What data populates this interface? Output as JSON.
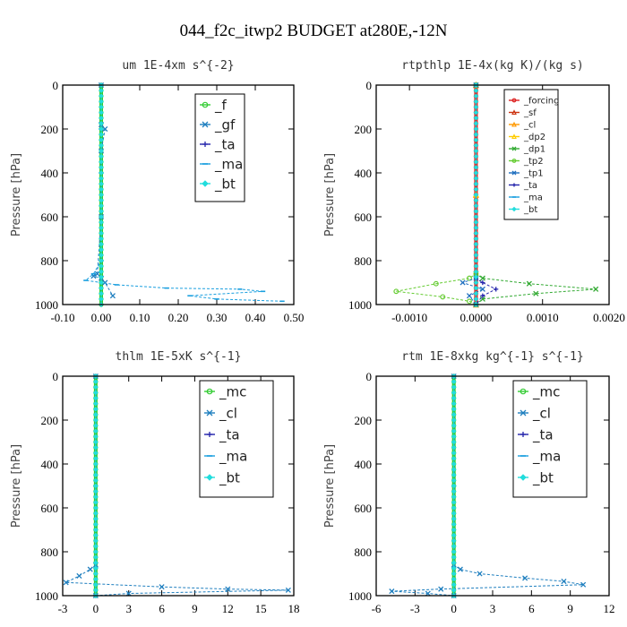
{
  "figure_title": "044_f2c_itwp2  BUDGET at280E,-12N",
  "chart_data": [
    {
      "type": "line",
      "title": "um   1E-4xm s^{-2}",
      "ylabel": "Pressure [hPa]",
      "xlim": [
        -0.1,
        0.5
      ],
      "ylim": [
        1000,
        0
      ],
      "xticks": [
        "-0.10",
        "0.00",
        "0.10",
        "0.20",
        "0.30",
        "0.40",
        "0.50"
      ],
      "xtick_values": [
        -0.1,
        0.0,
        0.1,
        0.2,
        0.3,
        0.4,
        0.5
      ],
      "yticks": [
        "0",
        "200",
        "400",
        "600",
        "800",
        "1000"
      ],
      "ytick_values": [
        0,
        200,
        400,
        600,
        800,
        1000
      ],
      "legend_position": "top-right",
      "series": [
        {
          "name": "_f",
          "color": "#33cc33",
          "marker": "circle",
          "x": [
            0.0,
            0.0,
            0.0,
            0.0,
            0.0,
            0.0
          ],
          "y": [
            0,
            200,
            400,
            600,
            800,
            1000
          ]
        },
        {
          "name": "_gf",
          "color": "#1f7fbf",
          "marker": "cross",
          "x": [
            0.0,
            0.0,
            0.01,
            0.0,
            0.0,
            -0.01,
            -0.02,
            0.0,
            0.01,
            0.03
          ],
          "y": [
            0,
            180,
            200,
            300,
            600,
            860,
            870,
            880,
            900,
            960
          ]
        },
        {
          "name": "_ta",
          "color": "#2222aa",
          "marker": "plus",
          "x": [
            0.0,
            0.0,
            0.0,
            0.0,
            0.0,
            0.0
          ],
          "y": [
            0,
            200,
            400,
            600,
            800,
            1000
          ]
        },
        {
          "name": "_ma",
          "color": "#1a9fdf",
          "marker": "dash",
          "x": [
            0.0,
            0.0,
            0.0,
            0.0,
            -0.02,
            -0.04,
            0.04,
            0.17,
            0.36,
            0.42,
            0.23,
            0.3,
            0.47
          ],
          "y": [
            0,
            200,
            400,
            800,
            860,
            890,
            910,
            925,
            930,
            940,
            960,
            975,
            985
          ]
        },
        {
          "name": "_bt",
          "color": "#22dddd",
          "marker": "diamond",
          "x": [
            0.0,
            0.0,
            0.0,
            0.0,
            0.0,
            0.0
          ],
          "y": [
            0,
            200,
            400,
            600,
            800,
            1000
          ]
        }
      ]
    },
    {
      "type": "line",
      "title": "rtpthlp   1E-4x(kg K)/(kg s)",
      "ylabel": "Pressure [hPa]",
      "xlim": [
        -0.0015,
        0.002
      ],
      "ylim": [
        1000,
        0
      ],
      "xticks": [
        "-0.0010",
        "0.0000",
        "0.0010",
        "0.0020"
      ],
      "xtick_values": [
        -0.001,
        0.0,
        0.001,
        0.002
      ],
      "yticks": [
        "0",
        "200",
        "400",
        "600",
        "800",
        "1000"
      ],
      "ytick_values": [
        0,
        200,
        400,
        600,
        800,
        1000
      ],
      "legend_position": "top-right",
      "series": [
        {
          "name": "_forcing",
          "color": "#dd2222",
          "marker": "circle",
          "x": [
            0.0,
            0.0,
            0.0,
            0.0,
            0.0,
            0.0
          ],
          "y": [
            0,
            200,
            400,
            600,
            800,
            1000
          ]
        },
        {
          "name": "_sf",
          "color": "#cc3311",
          "marker": "triangle",
          "x": [
            0.0,
            0.0,
            0.0
          ],
          "y": [
            0,
            500,
            1000
          ]
        },
        {
          "name": "_cl",
          "color": "#ff9900",
          "marker": "triangle",
          "x": [
            0.0,
            0.0,
            0.0
          ],
          "y": [
            0,
            500,
            1000
          ]
        },
        {
          "name": "_dp2",
          "color": "#ffcc00",
          "marker": "triangle",
          "x": [
            0.0,
            0.0,
            0.0
          ],
          "y": [
            0,
            500,
            1000
          ]
        },
        {
          "name": "_dp1",
          "color": "#33aa33",
          "marker": "cross",
          "x": [
            0.0,
            0.0,
            0.0001,
            0.0008,
            0.0018,
            0.0009,
            0.0001,
            0.0
          ],
          "y": [
            0,
            860,
            880,
            905,
            930,
            950,
            975,
            1000
          ]
        },
        {
          "name": "_tp2",
          "color": "#66cc33",
          "marker": "circle",
          "x": [
            0.0,
            0.0,
            -0.0001,
            -0.0006,
            -0.0012,
            -0.0005,
            -0.0001,
            0.0
          ],
          "y": [
            0,
            860,
            880,
            905,
            940,
            965,
            985,
            1000
          ]
        },
        {
          "name": "_tp1",
          "color": "#1f6fbf",
          "marker": "cross",
          "x": [
            0.0,
            0.0,
            -0.0002,
            0.0001,
            -0.0001,
            0.0
          ],
          "y": [
            0,
            880,
            900,
            930,
            960,
            1000
          ]
        },
        {
          "name": "_ta",
          "color": "#2222aa",
          "marker": "plus",
          "x": [
            0.0,
            0.0,
            0.0001,
            0.0003,
            0.0001,
            0.0
          ],
          "y": [
            0,
            880,
            900,
            930,
            960,
            1000
          ]
        },
        {
          "name": "_ma",
          "color": "#1a9fdf",
          "marker": "dash",
          "x": [
            0.0,
            0.0,
            0.0
          ],
          "y": [
            0,
            500,
            1000
          ]
        },
        {
          "name": "_bt",
          "color": "#22dddd",
          "marker": "diamond",
          "x": [
            0.0,
            0.0,
            0.0
          ],
          "y": [
            0,
            500,
            1000
          ]
        }
      ]
    },
    {
      "type": "line",
      "title": "thlm   1E-5xK s^{-1}",
      "ylabel": "Pressure [hPa]",
      "xlim": [
        -3,
        18
      ],
      "ylim": [
        1000,
        0
      ],
      "xticks": [
        "-3",
        "0",
        "3",
        "6",
        "9",
        "12",
        "15",
        "18"
      ],
      "xtick_values": [
        -3,
        0,
        3,
        6,
        9,
        12,
        15,
        18
      ],
      "yticks": [
        "0",
        "200",
        "400",
        "600",
        "800",
        "1000"
      ],
      "ytick_values": [
        0,
        200,
        400,
        600,
        800,
        1000
      ],
      "legend_position": "top-right",
      "series": [
        {
          "name": "_mc",
          "color": "#33cc33",
          "marker": "circle",
          "x": [
            0.0,
            0.0,
            0.0,
            0.0,
            0.0,
            0.0
          ],
          "y": [
            0,
            200,
            400,
            600,
            800,
            1000
          ]
        },
        {
          "name": "_cl",
          "color": "#1f7fbf",
          "marker": "cross",
          "x": [
            0.0,
            0.0,
            -0.5,
            -1.5,
            -2.7,
            6.0,
            12.0,
            17.5,
            3.0,
            0.0
          ],
          "y": [
            0,
            860,
            880,
            910,
            940,
            960,
            970,
            975,
            990,
            1000
          ]
        },
        {
          "name": "_ta",
          "color": "#2222aa",
          "marker": "plus",
          "x": [
            0.0,
            0.0,
            0.0
          ],
          "y": [
            0,
            500,
            1000
          ]
        },
        {
          "name": "_ma",
          "color": "#1a9fdf",
          "marker": "dash",
          "x": [
            0.0,
            0.0,
            0.0
          ],
          "y": [
            0,
            500,
            1000
          ]
        },
        {
          "name": "_bt",
          "color": "#22dddd",
          "marker": "diamond",
          "x": [
            0.0,
            0.0,
            0.0
          ],
          "y": [
            0,
            500,
            1000
          ]
        }
      ]
    },
    {
      "type": "line",
      "title": "rtm   1E-8xkg kg^{-1} s^{-1}",
      "ylabel": "Pressure [hPa]",
      "xlim": [
        -6,
        12
      ],
      "ylim": [
        1000,
        0
      ],
      "xticks": [
        "-6",
        "-3",
        "0",
        "3",
        "6",
        "9",
        "12"
      ],
      "xtick_values": [
        -6,
        -3,
        0,
        3,
        6,
        9,
        12
      ],
      "yticks": [
        "0",
        "200",
        "400",
        "600",
        "800",
        "1000"
      ],
      "ytick_values": [
        0,
        200,
        400,
        600,
        800,
        1000
      ],
      "legend_position": "top-right",
      "series": [
        {
          "name": "_mc",
          "color": "#33cc33",
          "marker": "circle",
          "x": [
            0.0,
            0.0,
            0.0,
            0.0,
            0.0,
            0.0
          ],
          "y": [
            0,
            200,
            400,
            600,
            800,
            1000
          ]
        },
        {
          "name": "_cl",
          "color": "#1f7fbf",
          "marker": "cross",
          "x": [
            0.0,
            0.0,
            0.5,
            2.0,
            5.5,
            8.5,
            10.0,
            -1.0,
            -4.8,
            -2.0,
            0.0
          ],
          "y": [
            0,
            860,
            880,
            900,
            920,
            935,
            950,
            970,
            980,
            990,
            1000
          ]
        },
        {
          "name": "_ta",
          "color": "#2222aa",
          "marker": "plus",
          "x": [
            0.0,
            0.0,
            0.0
          ],
          "y": [
            0,
            500,
            1000
          ]
        },
        {
          "name": "_ma",
          "color": "#1a9fdf",
          "marker": "dash",
          "x": [
            0.0,
            0.0,
            0.0
          ],
          "y": [
            0,
            500,
            1000
          ]
        },
        {
          "name": "_bt",
          "color": "#22dddd",
          "marker": "diamond",
          "x": [
            0.0,
            0.0,
            0.0
          ],
          "y": [
            0,
            500,
            1000
          ]
        }
      ]
    }
  ]
}
